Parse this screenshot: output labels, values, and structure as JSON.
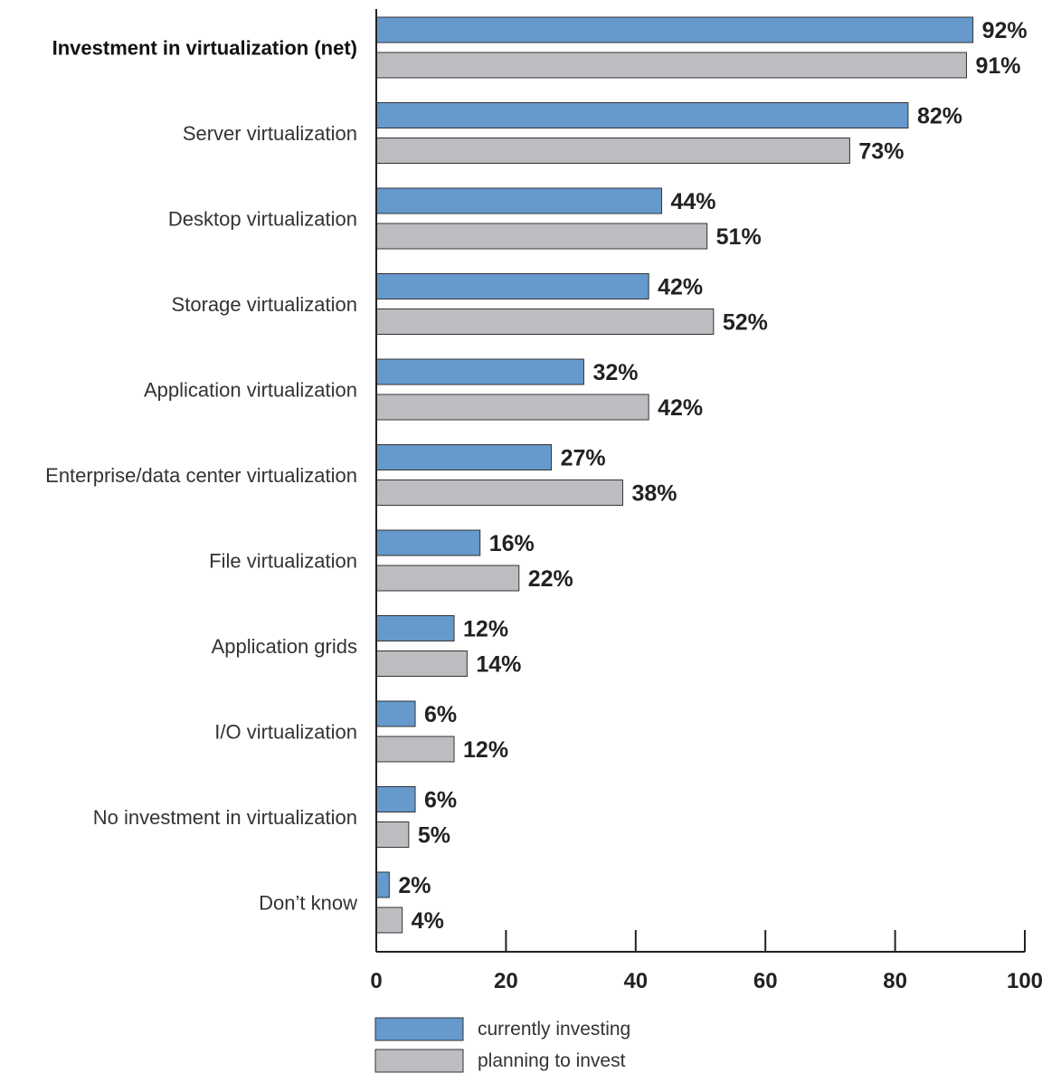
{
  "colors": {
    "series_1": "#6699cc",
    "series_2": "#bcbdc1",
    "bar_stroke": "#333333",
    "axis": "#222222"
  },
  "chart_data": {
    "type": "bar",
    "orientation": "horizontal",
    "categories": [
      "Investment in virtualization (net)",
      "Server virtualization",
      "Desktop virtualization",
      "Storage virtualization",
      "Application virtualization",
      "Enterprise/data center virtualization",
      "File virtualization",
      "Application grids",
      "I/O virtualization",
      "No investment in virtualization",
      "Don’t know"
    ],
    "bold_categories": [
      0
    ],
    "series": [
      {
        "name": "currently investing",
        "values": [
          92,
          82,
          44,
          42,
          32,
          27,
          16,
          12,
          6,
          6,
          2
        ],
        "labels": [
          "92%",
          "82%",
          "44%",
          "42%",
          "32%",
          "27%",
          "16%",
          "12%",
          "6%",
          "6%",
          "2%"
        ]
      },
      {
        "name": "planning to invest",
        "values": [
          91,
          73,
          51,
          52,
          42,
          38,
          22,
          14,
          12,
          5,
          4
        ],
        "labels": [
          "91%",
          "73%",
          "51%",
          "52%",
          "42%",
          "38%",
          "22%",
          "14%",
          "12%",
          "5%",
          "4%"
        ]
      }
    ],
    "x_ticks": [
      "0",
      "20",
      "40",
      "60",
      "80",
      "100"
    ],
    "xlim": [
      0,
      100
    ],
    "grid": false,
    "legend_position": "bottom-left"
  }
}
